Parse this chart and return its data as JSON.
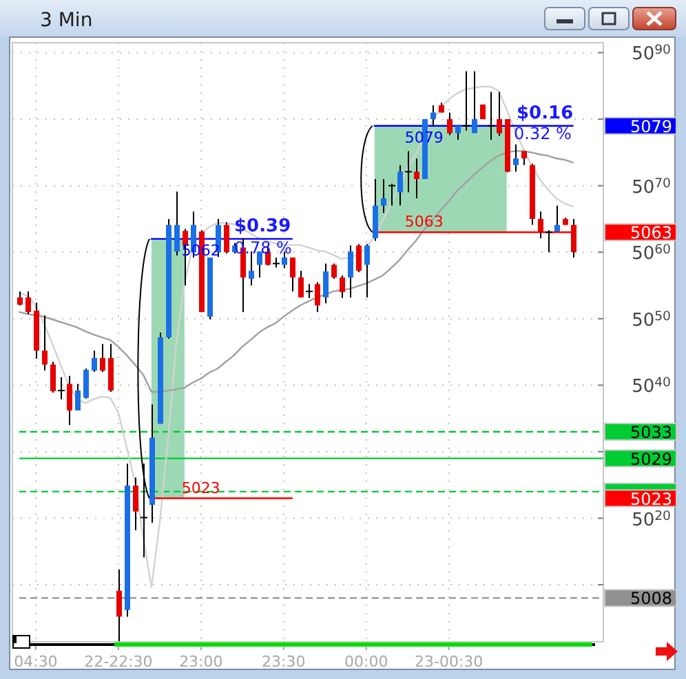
{
  "chart_data": {
    "type": "candlestick",
    "title": "3 Min",
    "categories": [
      null,
      null,
      "04:30",
      null,
      null,
      null,
      null,
      null,
      null,
      null,
      null,
      null,
      "22-22:30",
      null,
      null,
      null,
      null,
      null,
      null,
      null,
      null,
      null,
      "23:00",
      null,
      null,
      null,
      null,
      null,
      null,
      null,
      null,
      null,
      "23:30",
      null,
      null,
      null,
      null,
      null,
      null,
      null,
      null,
      null,
      "00:00",
      null,
      null,
      null,
      null,
      null,
      null,
      null,
      null,
      null,
      "23-00:30",
      null,
      null,
      null,
      null,
      null,
      null,
      null,
      null,
      null,
      null,
      null,
      null,
      null,
      null,
      null
    ],
    "ylim": [
      5001,
      5091.5
    ],
    "yticks": [
      {
        "value": 5010,
        "label": null
      },
      5020,
      {
        "value": 5030,
        "label": null
      },
      5040,
      5050,
      5060,
      5070,
      {
        "value": 5080,
        "label": null
      },
      5090
    ],
    "grid": true,
    "ohlc": [
      [
        5053.2,
        5054.1,
        5052,
        5052.1
      ],
      [
        5053.2,
        5054.1,
        5050.7,
        5051
      ],
      [
        5051.2,
        5052.4,
        5044,
        5045.2
      ],
      [
        5045.2,
        5050.5,
        5042.2,
        5043.1
      ],
      [
        5043.1,
        5043.5,
        5038.9,
        5039.1
      ],
      [
        5039.2,
        5041.2,
        5037.9,
        5039.2
      ],
      [
        5040.2,
        5041.4,
        5034,
        5036.2
      ],
      [
        5036.2,
        5040.2,
        5036.2,
        5039.2
      ],
      [
        5038.1,
        5042.5,
        5038,
        5042.3
      ],
      [
        5042.2,
        5045.2,
        5042,
        5044.1
      ],
      [
        5044.1,
        5046.2,
        5042,
        5042.2
      ],
      [
        5044.1,
        5046.2,
        5039,
        5039.2
      ],
      [
        5009.1,
        5012.3,
        5001.5,
        5005.2
      ],
      [
        5006.2,
        5028.2,
        5005.2,
        5024.9
      ],
      [
        5024.9,
        5026.1,
        5018.2,
        5021
      ],
      [
        5020.1,
        5028.2,
        5014.1,
        5020.1
      ],
      [
        5022,
        5037.1,
        5019.3,
        5032.1
      ],
      [
        5034.2,
        5047.9,
        5034.2,
        5047.2
      ],
      [
        5047.2,
        5065,
        5047,
        5064.1
      ],
      [
        5060.1,
        5069.1,
        5059.5,
        5064.1
      ],
      [
        5063.2,
        5063.5,
        5055,
        5061
      ],
      [
        5060,
        5066.1,
        5059.2,
        5064.1
      ],
      [
        5063.1,
        5063.3,
        5051,
        5051
      ],
      [
        5050.3,
        5059.2,
        5049.9,
        5059.2
      ],
      [
        5060,
        5065,
        5059.3,
        5064.1
      ],
      [
        5064.1,
        5064.5,
        5059.8,
        5060
      ],
      [
        5060,
        5061.4,
        5059.8,
        5061
      ],
      [
        5060.7,
        5062.1,
        5051,
        5056.2
      ],
      [
        5056,
        5060.1,
        5055,
        5057.2
      ],
      [
        5058.1,
        5060.1,
        5056.2,
        5060.1
      ],
      [
        5060.1,
        5061,
        5058,
        5058.1
      ],
      [
        5058.3,
        5059.2,
        5057.7,
        5058.3
      ],
      [
        5058.1,
        5060.1,
        5057.6,
        5059.2
      ],
      [
        5059.2,
        5059.2,
        5054.1,
        5056.2
      ],
      [
        5056.2,
        5057.2,
        5053.2,
        5053.2
      ],
      [
        5054.1,
        5055.2,
        5053.1,
        5054.1
      ],
      [
        5055.2,
        5055.5,
        5051,
        5052
      ],
      [
        5053.2,
        5058.3,
        5052.3,
        5057.1
      ],
      [
        5058.1,
        5058.3,
        5056,
        5056.2
      ],
      [
        5056.2,
        5056.5,
        5053.1,
        5054
      ],
      [
        5056.2,
        5061,
        5053.2,
        5060.1
      ],
      [
        5061,
        5061.2,
        5057,
        5057.2
      ],
      [
        5058.1,
        5061.2,
        5053.2,
        5061
      ],
      [
        5062.1,
        5071,
        5061.7,
        5067
      ],
      [
        5067,
        5071,
        5065.9,
        5068.1
      ],
      [
        5070,
        5070.3,
        5067,
        5070
      ],
      [
        5069,
        5073.1,
        5067,
        5072.1
      ],
      [
        5072.1,
        5075.2,
        5069,
        5072.1
      ],
      [
        5072.1,
        5074.1,
        5068.1,
        5071
      ],
      [
        5071,
        5080,
        5071,
        5080
      ],
      [
        5080,
        5082.1,
        5079,
        5081
      ],
      [
        5082.1,
        5082.5,
        5081,
        5081
      ],
      [
        5080,
        5081,
        5077.6,
        5077.9
      ],
      [
        5077.9,
        5079,
        5076.9,
        5079
      ],
      [
        5079,
        5087.2,
        5078.3,
        5079
      ],
      [
        5077.9,
        5087.2,
        5077.9,
        5080
      ],
      [
        5082.2,
        5082.2,
        5080,
        5080
      ],
      [
        5079,
        5084.1,
        5076.9,
        5079
      ],
      [
        5080,
        5084.1,
        5077.5,
        5077.9
      ],
      [
        5080,
        5080,
        5072,
        5072.1
      ],
      [
        5073.1,
        5076.2,
        5072.1,
        5074.1
      ],
      [
        5075.2,
        5075.2,
        5073.1,
        5074.1
      ],
      [
        5073.1,
        5073.3,
        5064.1,
        5065
      ],
      [
        5065,
        5066.1,
        5062.1,
        5063.1
      ],
      [
        5063,
        5063.3,
        5060,
        5063
      ],
      [
        5063.1,
        5067,
        5063.1,
        5064.1
      ],
      [
        5065,
        5065.2,
        5064.1,
        5064.1
      ],
      [
        5064.1,
        5065,
        5059.2,
        5060
      ]
    ],
    "colors": [
      "#e60000",
      "#e60000",
      "#e60000",
      "#e60000",
      "#e60000",
      "#000000",
      "#e60000",
      "#1a6fe6",
      "#1a6fe6",
      "#1a6fe6",
      "#e60000",
      "#e60000",
      "#e60000",
      "#1a6fe6",
      "#e60000",
      "#000000",
      "#1a6fe6",
      "#1a6fe6",
      "#1a6fe6",
      "#1a6fe6",
      "#e60000",
      "#1a6fe6",
      "#e60000",
      "#1a6fe6",
      "#1a6fe6",
      "#e60000",
      "#1a6fe6",
      "#e60000",
      "#1a6fe6",
      "#1a6fe6",
      "#e60000",
      "#000000",
      "#1a6fe6",
      "#e60000",
      "#e60000",
      "#000000",
      "#e60000",
      "#1a6fe6",
      "#e60000",
      "#e60000",
      "#1a6fe6",
      "#e60000",
      "#1a6fe6",
      "#1a6fe6",
      "#1a6fe6",
      "#000000",
      "#1a6fe6",
      "#000000",
      "#e60000",
      "#1a6fe6",
      "#1a6fe6",
      "#e60000",
      "#e60000",
      "#1a6fe6",
      "#000000",
      "#1a6fe6",
      "#e60000",
      "#000000",
      "#e60000",
      "#e60000",
      "#1a6fe6",
      "#e60000",
      "#e60000",
      "#e60000",
      "#000000",
      "#1a6fe6",
      "#e60000",
      "#e60000"
    ],
    "series": [
      {
        "type": "line",
        "color": "#d2d2d2",
        "values": [
          5053.9,
          5053.4,
          5052,
          5049.3,
          5046.2,
          5043.1,
          5040,
          5037.9,
          5037.3,
          5037.9,
          5038.3,
          5038.1,
          5035.9,
          5030.7,
          5025.5,
          5017.2,
          5009.6,
          5019.3,
          5031.7,
          5046.2,
          5055.5,
          5060.7,
          5062.8,
          5063.8,
          5064.4,
          5064.4,
          5064.2,
          5063.6,
          5062.8,
          5062.1,
          5061.7,
          5061.3,
          5061.1,
          5061.1,
          5061.1,
          5060.7,
          5060.3,
          5060.1,
          5059.6,
          5059,
          5059.2,
          5059.6,
          5060.7,
          5062.3,
          5064.8,
          5067.3,
          5070,
          5072.7,
          5074.7,
          5077.2,
          5079.7,
          5081.8,
          5083,
          5083.9,
          5084.5,
          5084.7,
          5084.9,
          5084.9,
          5084.3,
          5081.4,
          5078.3,
          5075.6,
          5073.1,
          5071,
          5069.4,
          5068.1,
          5067.3,
          5066.9
        ]
      },
      {
        "type": "line",
        "color": "#a0a0a0",
        "values": [
          5051,
          5050.7,
          5050.5,
          5050.3,
          5049.9,
          5049.5,
          5049.1,
          5048.7,
          5048.1,
          5047.6,
          5047.2,
          5046.8,
          5045.8,
          5044.5,
          5043.1,
          5041.6,
          5039,
          5039,
          5039.2,
          5039.4,
          5039.6,
          5040.4,
          5041,
          5041.9,
          5042.5,
          5043.5,
          5044.5,
          5045.8,
          5046.8,
          5047.9,
          5048.7,
          5049.3,
          5050.3,
          5051.2,
          5052,
          5052.6,
          5053.2,
          5053.6,
          5054.1,
          5054.3,
          5054.5,
          5054.9,
          5055.3,
          5055.9,
          5056.5,
          5057.6,
          5058.8,
          5060.3,
          5061.7,
          5063.4,
          5064.8,
          5066.3,
          5067.7,
          5069.2,
          5070.4,
          5071.6,
          5072.7,
          5073.7,
          5074.5,
          5075,
          5075.2,
          5075.2,
          5075,
          5074.7,
          5074.5,
          5074.1,
          5073.9,
          5073.5
        ]
      },
      {
        "type": "line",
        "color": "#0000ff",
        "values": [
          null,
          null,
          null,
          null,
          null,
          null,
          null,
          null,
          null,
          null,
          null,
          null,
          null,
          null,
          null,
          null,
          5062,
          5062,
          5062,
          5062,
          5062,
          5062,
          5062,
          5062,
          5062,
          5062,
          5062,
          5062,
          5062,
          5062,
          5062,
          5062,
          5062,
          5062,
          null,
          null,
          null,
          null,
          null,
          null,
          null,
          null,
          null,
          null,
          null,
          null,
          null,
          null,
          null,
          null,
          null,
          null,
          null,
          null,
          null,
          null,
          null,
          null,
          null,
          null,
          null,
          null,
          null,
          null,
          null,
          null,
          null,
          null
        ],
        "lower": [
          null,
          null,
          null,
          null,
          null,
          null,
          null,
          null,
          null,
          null,
          null,
          null,
          null,
          null,
          null,
          null,
          5023,
          5023,
          5023,
          5023,
          5023,
          null,
          null,
          null,
          null,
          null,
          null,
          null,
          null,
          null,
          null,
          null,
          null,
          null,
          null,
          null,
          null,
          null,
          null,
          null,
          null,
          null,
          null,
          null,
          null,
          null,
          null,
          null,
          null,
          null,
          null,
          null,
          null,
          null,
          null,
          null,
          null,
          null,
          null,
          null,
          null,
          null,
          null,
          null,
          null,
          null,
          null,
          null
        ],
        "upper": [
          null,
          null,
          null,
          null,
          null,
          null,
          null,
          null,
          null,
          null,
          null,
          null,
          null,
          null,
          null,
          null,
          5062,
          5062,
          5062,
          5062,
          5062,
          null,
          null,
          null,
          null,
          null,
          null,
          null,
          null,
          null,
          null,
          null,
          null,
          null,
          null,
          null,
          null,
          null,
          null,
          null,
          null,
          null,
          null,
          null,
          null,
          null,
          null,
          null,
          null,
          null,
          null,
          null,
          null,
          null,
          null,
          null,
          null,
          null,
          null,
          null,
          null,
          null,
          null,
          null,
          null,
          null,
          null,
          null
        ],
        "value_labels": [
          null,
          null,
          null,
          null,
          null,
          null,
          null,
          null,
          null,
          null,
          null,
          null,
          null,
          null,
          null,
          null,
          null,
          null,
          null,
          null,
          "5062",
          null,
          null,
          null,
          null,
          null,
          null,
          null,
          null,
          null,
          null,
          null,
          null,
          null,
          null,
          null,
          null,
          null,
          null,
          null,
          null,
          null,
          null,
          null,
          null,
          null,
          null,
          null,
          null,
          null,
          null,
          null,
          null,
          null,
          null,
          null,
          null,
          null,
          null,
          null,
          null,
          null,
          null,
          null,
          null,
          null,
          null,
          null
        ]
      },
      {
        "type": "line",
        "color": "#ff0000",
        "name": "5023",
        "values": [
          null,
          null,
          null,
          null,
          null,
          null,
          null,
          null,
          null,
          null,
          null,
          null,
          null,
          null,
          null,
          null,
          5023,
          5023,
          5023,
          5023,
          5023,
          5023,
          5023,
          5023,
          5023,
          5023,
          5023,
          5023,
          5023,
          5023,
          5023,
          5023,
          5023,
          5023,
          null,
          null,
          null,
          null,
          null,
          null,
          null,
          null,
          null,
          null,
          null,
          null,
          null,
          null,
          null,
          null,
          null,
          null,
          null,
          null,
          null,
          null,
          null,
          null,
          null,
          null,
          null,
          null,
          null,
          null,
          null,
          null,
          null,
          null
        ],
        "value_labels": [
          null,
          null,
          null,
          null,
          null,
          null,
          null,
          null,
          null,
          null,
          null,
          null,
          null,
          null,
          null,
          null,
          null,
          null,
          null,
          null,
          "5023",
          null,
          null,
          null,
          null,
          null,
          null,
          null,
          null,
          null,
          null,
          null,
          null,
          null,
          null,
          null,
          null,
          null,
          null,
          null,
          null,
          null,
          null,
          null,
          null,
          null,
          null,
          null,
          null,
          null,
          null,
          null,
          null,
          null,
          null,
          null,
          null,
          null,
          null,
          null,
          null,
          null,
          null,
          null,
          null,
          null,
          null,
          null
        ]
      },
      {
        "type": "line",
        "color": "#0000ff",
        "name": "5079",
        "values": [
          null,
          null,
          null,
          null,
          null,
          null,
          null,
          null,
          null,
          null,
          null,
          null,
          null,
          null,
          null,
          null,
          null,
          null,
          null,
          null,
          null,
          null,
          null,
          null,
          null,
          null,
          null,
          null,
          null,
          null,
          null,
          null,
          null,
          null,
          null,
          null,
          null,
          null,
          null,
          null,
          null,
          null,
          null,
          5079,
          5079,
          5079,
          5079,
          5079,
          5079,
          5079,
          5079,
          5079,
          5079,
          5079,
          5079,
          5079,
          5079,
          5079,
          5079,
          5079,
          5079,
          5079,
          5079,
          5079,
          5079,
          5079,
          5079,
          5079
        ],
        "lower": [
          null,
          null,
          null,
          null,
          null,
          null,
          null,
          null,
          null,
          null,
          null,
          null,
          null,
          null,
          null,
          null,
          null,
          null,
          null,
          null,
          null,
          null,
          null,
          null,
          null,
          null,
          null,
          null,
          null,
          null,
          null,
          null,
          null,
          null,
          null,
          null,
          null,
          null,
          null,
          null,
          null,
          null,
          null,
          5063,
          5063,
          5063,
          5063,
          5063,
          5063,
          5063,
          5063,
          5063,
          5063,
          5063,
          5063,
          5063,
          5063,
          5063,
          5063,
          5063,
          null,
          null,
          null,
          null,
          null,
          null,
          null,
          null
        ],
        "upper": [
          null,
          null,
          null,
          null,
          null,
          null,
          null,
          null,
          null,
          null,
          null,
          null,
          null,
          null,
          null,
          null,
          null,
          null,
          null,
          null,
          null,
          null,
          null,
          null,
          null,
          null,
          null,
          null,
          null,
          null,
          null,
          null,
          null,
          null,
          null,
          null,
          null,
          null,
          null,
          null,
          null,
          null,
          null,
          5079,
          5079,
          5079,
          5079,
          5079,
          5079,
          5079,
          5079,
          5079,
          5079,
          5079,
          5079,
          5079,
          5079,
          5079,
          5079,
          5079,
          null,
          null,
          null,
          null,
          null,
          null,
          null,
          null
        ],
        "value_labels": [
          null,
          null,
          null,
          null,
          null,
          null,
          null,
          null,
          null,
          null,
          null,
          null,
          null,
          null,
          null,
          null,
          null,
          null,
          null,
          null,
          null,
          null,
          null,
          null,
          null,
          null,
          null,
          null,
          null,
          null,
          null,
          null,
          null,
          null,
          null,
          null,
          null,
          null,
          null,
          null,
          null,
          null,
          null,
          null,
          null,
          null,
          null,
          "5079",
          null,
          null,
          null,
          null,
          null,
          null,
          null,
          null,
          null,
          null,
          null,
          null,
          null,
          null,
          null,
          null,
          null,
          null,
          null,
          null
        ]
      },
      {
        "type": "line",
        "color": "#ff0000",
        "name": "5063",
        "values": [
          null,
          null,
          null,
          null,
          null,
          null,
          null,
          null,
          null,
          null,
          null,
          null,
          null,
          null,
          null,
          null,
          null,
          null,
          null,
          null,
          null,
          null,
          null,
          null,
          null,
          null,
          null,
          null,
          null,
          null,
          null,
          null,
          null,
          null,
          null,
          null,
          null,
          null,
          null,
          null,
          null,
          null,
          null,
          5063,
          5063,
          5063,
          5063,
          5063,
          5063,
          5063,
          5063,
          5063,
          5063,
          5063,
          5063,
          5063,
          5063,
          5063,
          5063,
          5063,
          5063,
          5063,
          5063,
          5063,
          5063,
          5063,
          5063,
          5063
        ],
        "value_labels": [
          null,
          null,
          null,
          null,
          null,
          null,
          null,
          null,
          null,
          null,
          null,
          null,
          null,
          null,
          null,
          null,
          null,
          null,
          null,
          null,
          null,
          null,
          null,
          null,
          null,
          null,
          null,
          null,
          null,
          null,
          null,
          null,
          null,
          null,
          null,
          null,
          null,
          null,
          null,
          null,
          null,
          null,
          null,
          null,
          null,
          null,
          null,
          "5063",
          null,
          null,
          null,
          null,
          null,
          null,
          null,
          null,
          null,
          null,
          null,
          null,
          null,
          null,
          null,
          null,
          null,
          null,
          null,
          null
        ]
      }
    ],
    "ref_lines": [
      {
        "axis": "y",
        "value": 5033,
        "label": "5033",
        "color": "#00cc33",
        "line_style": "dashed"
      },
      {
        "axis": "y",
        "value": 5029,
        "label": "5029",
        "color": "#00cc33",
        "line_style": "solid"
      },
      {
        "axis": "y",
        "value": 5024,
        "label": null,
        "color": "#00cc33",
        "line_style": "dashed"
      },
      {
        "axis": "y",
        "value": 5008,
        "label": "5008",
        "color": "#909090",
        "line_style": "dashed"
      }
    ],
    "annotations": [
      "$0.39",
      "0.78 %",
      "$0.16",
      "0.32 %"
    ]
  }
}
